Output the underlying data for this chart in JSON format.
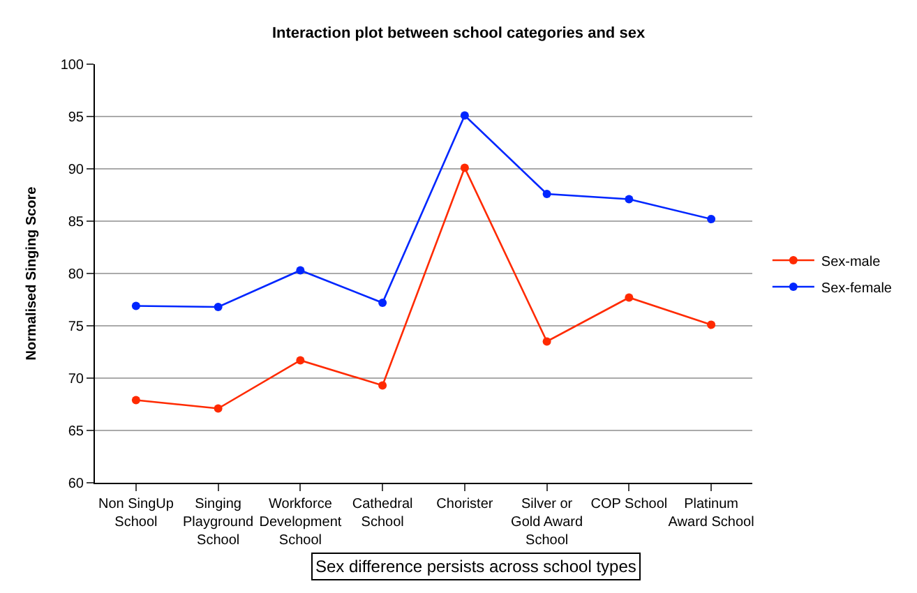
{
  "chart_data": {
    "type": "line",
    "title": "Interaction plot between school categories and sex",
    "ylabel": "Normalised Singing Score",
    "categories": [
      "Non SingUp School",
      "Singing Playground School",
      "Workforce Development School",
      "Cathedral School",
      "Chorister",
      "Silver or Gold Award School",
      "COP School",
      "Platinum Award School"
    ],
    "series": [
      {
        "name": "Sex-male",
        "color": "#ff2a00",
        "values": [
          67.9,
          67.1,
          71.7,
          69.3,
          90.1,
          73.5,
          77.7,
          75.1
        ]
      },
      {
        "name": "Sex-female",
        "color": "#0026ff",
        "values": [
          76.9,
          76.8,
          80.3,
          77.2,
          95.1,
          87.6,
          87.1,
          85.2
        ]
      }
    ],
    "ylim": [
      60,
      100
    ],
    "yticks": [
      60,
      65,
      70,
      75,
      80,
      85,
      90,
      95,
      100
    ],
    "grid": "y",
    "legend": "right",
    "marker": "circle",
    "line_style": "solid",
    "annotations": [
      "Sex difference persists across school types"
    ]
  }
}
